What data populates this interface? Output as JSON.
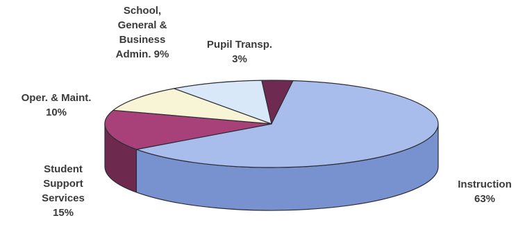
{
  "chart_data": {
    "type": "pie",
    "title": "",
    "three_d": true,
    "slices": [
      {
        "label_lines": [
          "Pupil Transp."
        ],
        "value_label": "3%",
        "value": 3,
        "top_color": "#6e2a50",
        "side_color": "#4e1c38"
      },
      {
        "label_lines": [
          "Instruction"
        ],
        "value_label": "63%",
        "value": 63,
        "top_color": "#a9bdec",
        "side_color": "#7891cf"
      },
      {
        "label_lines": [
          "Student",
          "Support",
          "Services"
        ],
        "value_label": "15%",
        "value": 15,
        "top_color": "#a8407a",
        "side_color": "#6e2a4e"
      },
      {
        "label_lines": [
          "Oper. & Maint."
        ],
        "value_label": "10%",
        "value": 10,
        "top_color": "#f7f5d6",
        "side_color": "#cfcdb1"
      },
      {
        "label_lines": [
          "School,",
          "General &",
          "Business",
          "Admin. 9%"
        ],
        "value_label": "",
        "value": 9,
        "top_color": "#d8e8f8",
        "side_color": "#a9bdd6"
      }
    ]
  }
}
